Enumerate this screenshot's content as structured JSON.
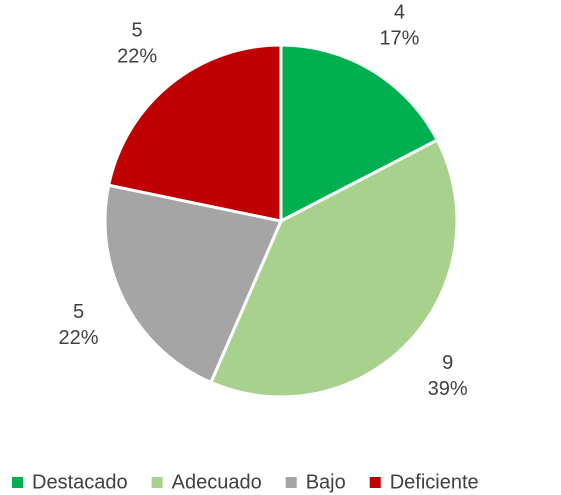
{
  "chart_data": {
    "type": "pie",
    "categories": [
      "Destacado",
      "Adecuado",
      "Bajo",
      "Deficiente"
    ],
    "values": [
      4,
      9,
      5,
      5
    ],
    "percent_labels": [
      "17%",
      "39%",
      "22%",
      "22%"
    ],
    "colors": [
      "#00b050",
      "#a9d18e",
      "#a5a5a5",
      "#c00000"
    ],
    "legend": "bottom"
  }
}
